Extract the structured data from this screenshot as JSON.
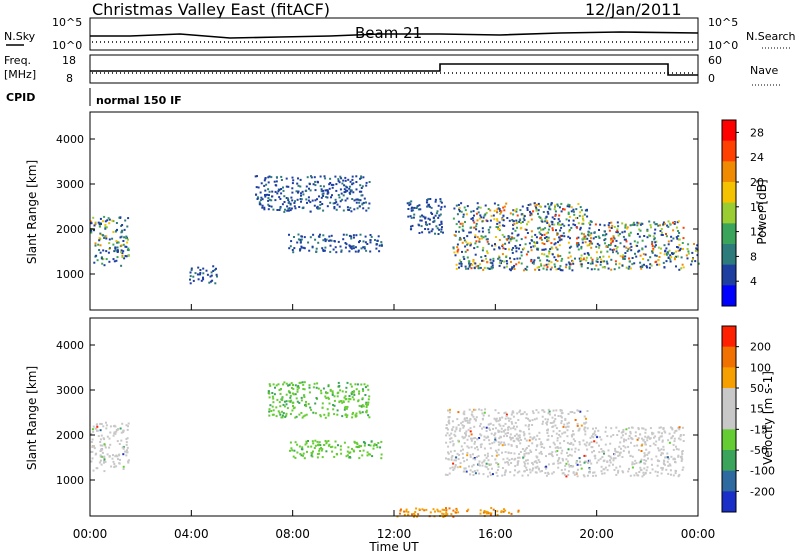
{
  "header": {
    "title": "Christmas Valley East (fitACF)",
    "beam": "Beam 21",
    "date": "12/Jan/2011"
  },
  "status": {
    "nsky_label": "N.Sky",
    "nsearch_label": "N.Search",
    "nsky_ticks": [
      "10^5",
      "10^0"
    ],
    "nsky_ticks_right": [
      "10^5",
      "10^0"
    ],
    "freq_label_1": "Freq.",
    "freq_label_2": "[MHz]",
    "freq_ticks": [
      "18",
      "8"
    ],
    "nave_label": "Nave",
    "nave_ticks": [
      "60",
      "0"
    ],
    "cpid_label": "CPID",
    "cpid_value": "normal 150 IF"
  },
  "chart_data": [
    {
      "type": "heatmap",
      "panel": "power",
      "xlabel": "Time UT",
      "ylabel": "Slant Range [km]",
      "xlim": [
        0,
        24
      ],
      "ylim": [
        200,
        4600
      ],
      "x_ticks": [
        "00:00",
        "04:00",
        "08:00",
        "12:00",
        "16:00",
        "20:00",
        "00:00"
      ],
      "y_ticks": [
        1000,
        2000,
        3000,
        4000
      ],
      "colorbar": {
        "label": "Power [dB]",
        "ticks": [
          4,
          8,
          12,
          16,
          20,
          24,
          28
        ],
        "range": [
          0,
          30
        ],
        "colors": [
          "#0000ff",
          "#1f3fa0",
          "#2e7b7b",
          "#3aa55a",
          "#9acd32",
          "#f5c200",
          "#f08a00",
          "#ff4000",
          "#ff0000"
        ]
      },
      "echo_regions": [
        {
          "t": [
            0.0,
            1.5
          ],
          "range": [
            1200,
            2300
          ],
          "power": [
            4,
            22
          ]
        },
        {
          "t": [
            3.9,
            5.0
          ],
          "range": [
            800,
            1200
          ],
          "power": [
            4,
            10
          ]
        },
        {
          "t": [
            6.5,
            11.0
          ],
          "range": [
            2400,
            3200
          ],
          "power": [
            4,
            10
          ]
        },
        {
          "t": [
            7.8,
            11.5
          ],
          "range": [
            1500,
            1900
          ],
          "power": [
            4,
            10
          ]
        },
        {
          "t": [
            12.5,
            14.0
          ],
          "range": [
            1900,
            2700
          ],
          "power": [
            4,
            10
          ]
        },
        {
          "t": [
            14.3,
            19.6
          ],
          "range": [
            1100,
            2600
          ],
          "power": [
            4,
            26
          ]
        },
        {
          "t": [
            19.6,
            23.4
          ],
          "range": [
            1100,
            2200
          ],
          "power": [
            4,
            26
          ]
        },
        {
          "t": [
            23.5,
            24.0
          ],
          "range": [
            1200,
            1700
          ],
          "power": [
            4,
            22
          ]
        }
      ]
    },
    {
      "type": "heatmap",
      "panel": "velocity",
      "xlabel": "Time UT",
      "ylabel": "Slant Range [km]",
      "xlim": [
        0,
        24
      ],
      "ylim": [
        200,
        4600
      ],
      "x_ticks": [
        "00:00",
        "04:00",
        "08:00",
        "12:00",
        "16:00",
        "20:00",
        "00:00"
      ],
      "y_ticks": [
        1000,
        2000,
        3000,
        4000
      ],
      "colorbar": {
        "label": "Velocity [m s-1]",
        "ticks": [
          200,
          100,
          50,
          15,
          -15,
          -50,
          -100,
          -200
        ],
        "colors": [
          "#1a2fc8",
          "#2e6aa0",
          "#3aa55a",
          "#66cc33",
          "#c8c8c8",
          "#c8c8c8",
          "#f5a000",
          "#f07000",
          "#ff2000"
        ]
      },
      "echo_regions": [
        {
          "t": [
            0.0,
            1.5
          ],
          "range": [
            1200,
            2300
          ],
          "velocity": "ground scatter"
        },
        {
          "t": [
            7.0,
            11.0
          ],
          "range": [
            2400,
            3200
          ],
          "velocity": [
            15,
            50
          ]
        },
        {
          "t": [
            7.8,
            11.5
          ],
          "range": [
            1500,
            1900
          ],
          "velocity": [
            15,
            50
          ]
        },
        {
          "t": [
            14.0,
            19.6
          ],
          "range": [
            1100,
            2600
          ],
          "velocity": "ground scatter"
        },
        {
          "t": [
            19.6,
            23.4
          ],
          "range": [
            1100,
            2200
          ],
          "velocity": "ground scatter"
        },
        {
          "t": [
            12.0,
            17.0
          ],
          "range": [
            200,
            400
          ],
          "velocity": [
            -100,
            -50
          ]
        }
      ]
    }
  ]
}
